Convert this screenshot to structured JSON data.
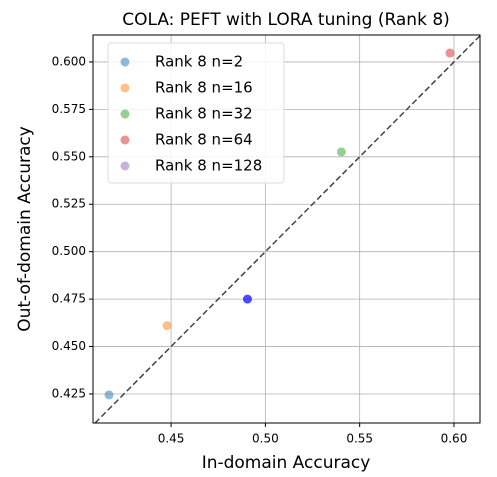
{
  "chart_data": {
    "type": "scatter",
    "title": "COLA: PEFT with LORA tuning (Rank 8)",
    "x_label": "In-domain Accuracy",
    "y_label": "Out-of-domain Accuracy",
    "series": [
      {
        "name": "Rank 8 n=2",
        "color": "#1f77b4",
        "x": [
          0.4171
        ],
        "values": [
          0.4245
        ]
      },
      {
        "name": "Rank 8 n=16",
        "color": "#ff7f0e",
        "x": [
          0.4479
        ],
        "values": [
          0.461
        ]
      },
      {
        "name": "Rank 8 n=32",
        "color": "#2ca02c",
        "x": [
          0.5403
        ],
        "values": [
          0.5526
        ]
      },
      {
        "name": "Rank 8 n=64",
        "color": "#d62728",
        "x": [
          0.5979
        ],
        "values": [
          0.6047
        ]
      },
      {
        "name": "Rank 8 n=128",
        "color": "#9467bd",
        "point_color": "#0000ff",
        "x": [
          0.4905
        ],
        "values": [
          0.475
        ]
      }
    ],
    "xlim": [
      0.4086,
      0.6138
    ],
    "ylim": [
      0.4097,
      0.6142
    ],
    "xticks": [
      0.45,
      {
        "value": 0.5,
        "label": "0.50"
      },
      0.55,
      {
        "value": 0.6,
        "label": "0.60"
      }
    ],
    "yticks": [
      0.425,
      {
        "value": 0.45,
        "label": "0.450"
      },
      0.475,
      {
        "value": 0.5,
        "label": "0.500"
      },
      0.525,
      {
        "value": 0.55,
        "label": "0.550"
      },
      0.575,
      {
        "value": 0.6,
        "label": "0.600"
      }
    ],
    "grid": true,
    "diagonal": true,
    "legend": "upper left",
    "alpha": 0.5
  }
}
